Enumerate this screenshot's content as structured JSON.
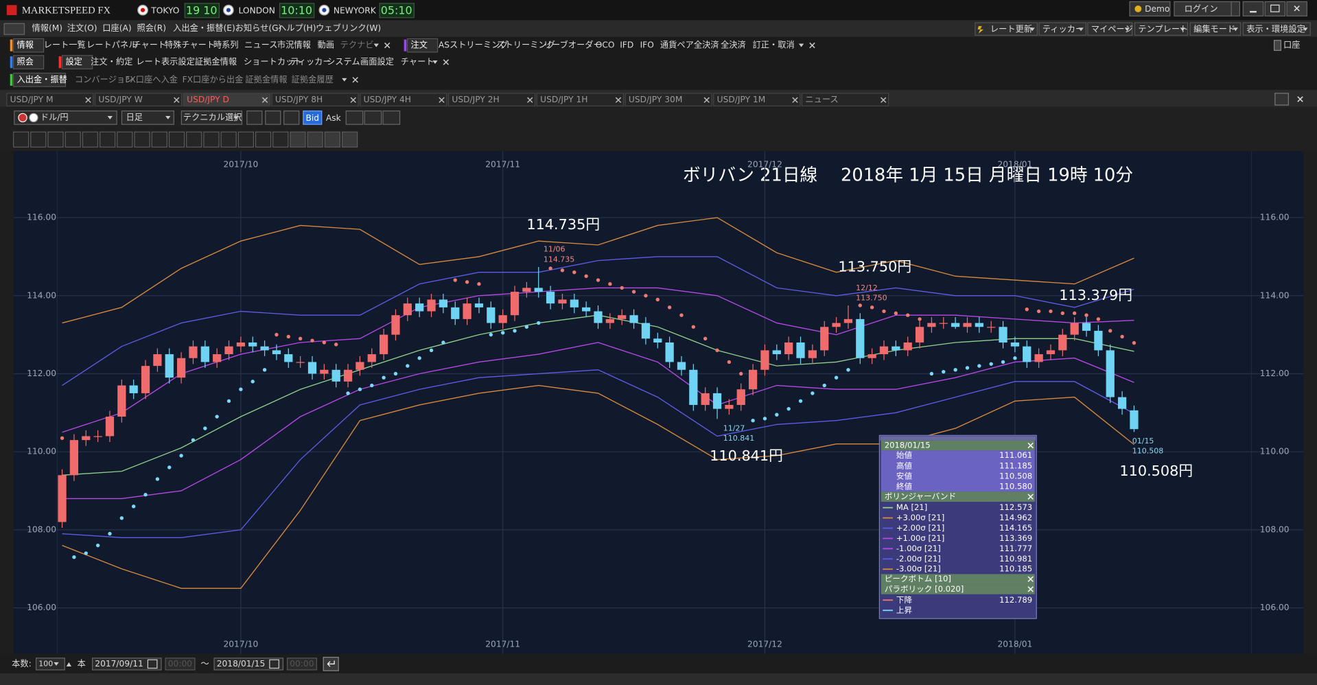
{
  "title_bar": {
    "app": "MARKETSPEED FX",
    "clocks": [
      {
        "city": "TOKYO",
        "time": "19 10"
      },
      {
        "city": "LONDON",
        "time": "10:10"
      },
      {
        "city": "NEWYORK",
        "time": "05:10"
      }
    ],
    "buttons": [
      "Demo",
      "ログイン"
    ]
  },
  "menu": [
    "情報(M)",
    "注文(O)",
    "口座(A)",
    "照会(R)",
    "入出金・振替(E)",
    "お知らせ(G)",
    "ヘルプ(H)",
    "ウェブリンク(W)"
  ],
  "menu_right": [
    "レート更新",
    "ティッカー",
    "マイページ",
    "テンプレート",
    "編集モード",
    "表示・環境設定"
  ],
  "toolbar1": {
    "info": {
      "label": "情報",
      "items": [
        "レート一覧",
        "レートパネル",
        "チャート",
        "特殊チャート",
        "時系列",
        "ニュース",
        "市況情報",
        "動画",
        "テクナビ"
      ]
    },
    "order": {
      "label": "注文",
      "items": [
        "ASストリーミング",
        "ストリーミング",
        "リーブオーダー",
        "OCO",
        "IFD",
        "IFO",
        "通貨ペア全決済",
        "全決済",
        "訂正・取消"
      ]
    },
    "account": "口座"
  },
  "toolbar2": {
    "inquiry": "照会",
    "settings": {
      "label": "設定",
      "items": [
        "注文・約定",
        "レート表示設定",
        "証拠金情報",
        "ショートカット",
        "ティッカー",
        "システム",
        "画面設定",
        "チャート"
      ]
    }
  },
  "toolbar3": {
    "label": "入出金・振替",
    "items": [
      "コンバージョン",
      "FX口座へ入金",
      "FX口座から出金",
      "証拠金情報",
      "証拠金履歴"
    ]
  },
  "tabs": {
    "items": [
      "USD/JPY M",
      "USD/JPY W",
      "USD/JPY D",
      "USD/JPY 8H",
      "USD/JPY 4H",
      "USD/JPY 2H",
      "USD/JPY 1H",
      "USD/JPY 30M",
      "USD/JPY 1M",
      "ニュース"
    ],
    "active": 2
  },
  "chart_toolbar": {
    "pair": "ドル/円",
    "period": "日足",
    "technical": "テクニカル選択",
    "bid": "Bid",
    "ask": "Ask"
  },
  "chart_data": {
    "type": "candlestick",
    "title": "ボリバン 21日線　 2018年 1月 15日 月曜日 19時 10分",
    "categories": [
      null,
      null,
      null,
      null,
      null,
      null,
      null,
      null,
      null,
      null,
      null,
      null,
      null,
      null,
      null,
      null,
      null,
      null,
      null,
      null,
      null,
      null,
      null,
      null,
      null,
      null,
      null,
      null,
      null,
      null,
      null,
      null,
      null,
      null,
      null,
      null,
      null,
      null,
      null,
      null,
      null,
      null,
      null,
      null,
      null,
      null,
      null,
      null,
      null,
      null,
      null,
      null,
      null,
      null,
      null,
      null,
      null,
      null,
      null,
      null,
      null,
      null,
      null,
      null,
      null,
      null,
      null,
      null,
      null,
      null,
      null,
      null,
      null,
      null,
      null,
      null,
      null,
      null,
      null,
      null,
      null,
      null,
      null,
      null,
      null,
      null,
      null,
      null,
      null,
      null,
      null
    ],
    "open": [
      108.2,
      109.4,
      110.3,
      110.4,
      110.4,
      110.9,
      111.7,
      111.5,
      112.2,
      112.5,
      111.9,
      112.4,
      112.7,
      112.3,
      112.5,
      112.7,
      112.8,
      112.7,
      112.6,
      112.5,
      112.3,
      112.3,
      112.0,
      112.1,
      111.8,
      112.1,
      112.3,
      112.5,
      113.0,
      113.5,
      113.8,
      113.6,
      113.9,
      113.7,
      113.4,
      113.8,
      113.7,
      113.3,
      113.5,
      114.1,
      114.2,
      114.1,
      113.8,
      113.9,
      113.7,
      113.6,
      113.3,
      113.4,
      113.5,
      113.3,
      112.9,
      112.8,
      112.3,
      112.1,
      111.2,
      111.5,
      111.1,
      111.2,
      111.6,
      112.1,
      112.6,
      112.5,
      112.8,
      112.4,
      112.6,
      113.2,
      113.3,
      113.4,
      112.4,
      112.5,
      112.7,
      112.6,
      112.8,
      113.2,
      113.3,
      113.3,
      113.2,
      113.3,
      113.2,
      113.2,
      112.8,
      112.7,
      112.3,
      112.5,
      112.6,
      113.0,
      113.3,
      113.1,
      112.6,
      111.4,
      111.061
    ],
    "high": [
      109.55,
      110.45,
      110.55,
      110.55,
      111.05,
      111.85,
      111.85,
      112.35,
      112.65,
      112.65,
      112.55,
      112.85,
      112.85,
      112.65,
      112.85,
      112.95,
      112.95,
      112.85,
      112.75,
      112.65,
      112.45,
      112.45,
      112.25,
      112.25,
      112.25,
      112.45,
      112.65,
      113.15,
      113.65,
      113.95,
      113.95,
      114.05,
      114.05,
      113.85,
      113.95,
      113.95,
      113.85,
      113.65,
      114.25,
      114.35,
      114.735,
      114.25,
      114.05,
      114.05,
      113.85,
      113.75,
      113.55,
      113.65,
      113.65,
      113.45,
      113.05,
      112.95,
      112.45,
      112.25,
      111.65,
      111.65,
      111.35,
      111.75,
      112.25,
      112.75,
      112.75,
      112.95,
      112.95,
      112.75,
      113.35,
      113.45,
      113.75,
      113.55,
      112.65,
      112.85,
      112.85,
      112.95,
      113.35,
      113.45,
      113.45,
      113.45,
      113.45,
      113.45,
      113.35,
      113.35,
      112.95,
      112.85,
      112.65,
      112.75,
      113.15,
      113.45,
      113.45,
      113.25,
      112.75,
      111.55,
      111.185
    ],
    "low": [
      108.05,
      109.25,
      110.15,
      110.25,
      110.25,
      110.75,
      111.35,
      111.35,
      112.05,
      111.75,
      111.75,
      112.25,
      112.15,
      112.15,
      112.35,
      112.55,
      112.55,
      112.45,
      112.35,
      112.15,
      112.15,
      111.85,
      111.85,
      111.65,
      111.65,
      111.95,
      112.15,
      112.35,
      112.85,
      113.35,
      113.45,
      113.45,
      113.55,
      113.25,
      113.25,
      113.55,
      113.15,
      113.15,
      113.35,
      113.95,
      113.95,
      113.65,
      113.65,
      113.55,
      113.45,
      113.15,
      113.15,
      113.25,
      113.15,
      112.75,
      112.65,
      112.15,
      111.95,
      111.05,
      111.05,
      110.841,
      110.95,
      111.05,
      111.45,
      111.95,
      112.35,
      112.35,
      112.25,
      112.25,
      112.45,
      113.05,
      113.15,
      112.25,
      112.25,
      112.35,
      112.45,
      112.45,
      112.65,
      113.05,
      113.15,
      113.15,
      113.05,
      113.05,
      113.05,
      112.65,
      112.55,
      112.15,
      112.15,
      112.35,
      112.45,
      112.85,
      112.95,
      112.45,
      111.25,
      110.95,
      110.508
    ],
    "close": [
      109.4,
      110.3,
      110.4,
      110.4,
      110.9,
      111.7,
      111.5,
      112.2,
      112.5,
      111.9,
      112.4,
      112.7,
      112.3,
      112.5,
      112.7,
      112.8,
      112.7,
      112.6,
      112.5,
      112.3,
      112.3,
      112.0,
      112.1,
      111.8,
      112.1,
      112.3,
      112.5,
      113.0,
      113.5,
      113.8,
      113.6,
      113.9,
      113.7,
      113.4,
      113.8,
      113.7,
      113.3,
      113.5,
      114.1,
      114.2,
      114.1,
      113.8,
      113.9,
      113.7,
      113.6,
      113.3,
      113.4,
      113.5,
      113.3,
      112.9,
      112.8,
      112.3,
      112.1,
      111.2,
      111.5,
      111.1,
      111.2,
      111.6,
      112.1,
      112.6,
      112.5,
      112.8,
      112.4,
      112.6,
      113.2,
      113.3,
      113.4,
      112.4,
      112.5,
      112.7,
      112.6,
      112.8,
      113.2,
      113.3,
      113.3,
      113.2,
      113.3,
      113.2,
      113.2,
      112.8,
      112.7,
      112.3,
      112.5,
      112.6,
      113.0,
      113.3,
      113.1,
      112.6,
      111.4,
      111.1,
      110.58
    ],
    "up_color": "#f06c6c",
    "down_color": "#6fd3f3",
    "bands": {
      "x": [
        0,
        5,
        10,
        15,
        20,
        25,
        30,
        35,
        40,
        45,
        50,
        55,
        60,
        65,
        70,
        75,
        80,
        85,
        90
      ],
      "series": [
        {
          "color": "#8fd08a",
          "values": [
            109.4,
            109.5,
            110.1,
            110.9,
            111.6,
            112.1,
            112.6,
            113.0,
            113.3,
            113.5,
            113.2,
            112.6,
            112.2,
            112.3,
            112.6,
            112.8,
            112.9,
            112.9,
            112.573
          ]
        },
        {
          "color": "#d98a3c",
          "values": [
            113.3,
            113.7,
            114.7,
            115.4,
            115.8,
            115.7,
            114.8,
            115.0,
            115.4,
            115.3,
            115.8,
            116.0,
            115.1,
            114.6,
            114.9,
            114.5,
            114.4,
            114.3,
            114.962
          ]
        },
        {
          "color": "#5c5ce6",
          "values": [
            111.7,
            112.7,
            113.3,
            113.6,
            113.5,
            113.5,
            114.3,
            114.6,
            114.6,
            114.9,
            115.0,
            115.0,
            114.2,
            114.0,
            114.2,
            114.0,
            114.0,
            113.7,
            114.165
          ]
        },
        {
          "color": "#b648e6",
          "values": [
            110.5,
            111.0,
            112.0,
            112.5,
            112.8,
            112.9,
            113.7,
            114.0,
            114.1,
            114.2,
            114.2,
            114.0,
            113.3,
            113.0,
            113.5,
            113.5,
            113.4,
            113.3,
            113.369
          ]
        },
        {
          "color": "#b648e6",
          "values": [
            108.8,
            108.8,
            109.0,
            109.8,
            110.9,
            111.6,
            112.0,
            112.3,
            112.5,
            112.8,
            112.3,
            111.2,
            111.7,
            111.6,
            111.6,
            111.9,
            112.3,
            112.4,
            111.777
          ]
        },
        {
          "color": "#5c5ce6",
          "values": [
            107.9,
            107.8,
            107.8,
            108.0,
            109.8,
            111.2,
            111.6,
            111.9,
            112.0,
            112.1,
            111.4,
            110.4,
            110.7,
            110.8,
            111.0,
            111.4,
            111.8,
            111.8,
            110.981
          ]
        },
        {
          "color": "#d98a3c",
          "values": [
            107.6,
            107.0,
            106.5,
            106.5,
            108.5,
            110.8,
            111.2,
            111.5,
            111.7,
            111.5,
            110.7,
            109.8,
            109.9,
            110.2,
            110.2,
            110.6,
            111.3,
            111.4,
            110.185
          ]
        }
      ]
    },
    "parabolic": {
      "down_color": "#f07a72",
      "up_color": "#7bd8f6",
      "values": [
        110.35,
        107.3,
        107.4,
        107.6,
        107.9,
        108.3,
        108.6,
        108.9,
        109.3,
        109.6,
        109.9,
        110.3,
        110.6,
        110.9,
        111.3,
        111.6,
        111.8,
        112.1,
        113.0,
        112.95,
        112.9,
        112.85,
        112.8,
        112.75,
        111.5,
        111.6,
        111.7,
        111.9,
        112.0,
        112.2,
        112.4,
        112.6,
        112.8,
        114.4,
        114.35,
        114.3,
        113.0,
        113.05,
        113.1,
        113.2,
        113.3,
        114.7,
        114.65,
        114.6,
        114.5,
        114.4,
        114.3,
        114.2,
        114.1,
        114.0,
        113.9,
        113.7,
        113.5,
        113.2,
        112.9,
        112.6,
        112.3,
        112.0,
        110.8,
        110.85,
        110.95,
        111.1,
        111.3,
        111.5,
        111.7,
        111.9,
        112.1,
        113.75,
        113.7,
        113.6,
        113.55,
        113.5,
        113.4,
        112.0,
        112.05,
        112.1,
        112.15,
        112.2,
        112.25,
        112.3,
        112.4,
        113.65,
        113.6,
        113.6,
        113.55,
        113.55,
        113.5,
        113.4,
        113.1,
        112.95,
        112.789
      ]
    },
    "ylim": [
      104.82,
      117.7
    ],
    "yticks": [
      {
        "value": 106,
        "label": "106.00"
      },
      {
        "value": 108,
        "label": "108.00"
      },
      {
        "value": 110,
        "label": "110.00"
      },
      {
        "value": 112,
        "label": "112.00"
      },
      {
        "value": 114,
        "label": "114.00"
      },
      {
        "value": 116,
        "label": "116.00"
      }
    ],
    "xticks": [
      {
        "value": 15,
        "label": "2017/10"
      },
      {
        "value": 37,
        "label": "2017/11"
      },
      {
        "value": 59,
        "label": "2017/12"
      },
      {
        "value": 80,
        "label": "2018/01"
      }
    ],
    "grid": true,
    "annotations": [
      "114.735円",
      "113.750円",
      "113.379円",
      "110.841円",
      "110.508円"
    ],
    "point_labels": [
      {
        "date": "11/06",
        "value": "114.735"
      },
      {
        "date": "12/12",
        "value": "113.750"
      },
      {
        "date": "11/27",
        "value": "110.841"
      },
      {
        "date": "01/15",
        "value": "110.508"
      }
    ]
  },
  "info_panel": {
    "date": "2018/01/15",
    "ohlc": [
      {
        "label": "始値",
        "value": "111.061"
      },
      {
        "label": "高値",
        "value": "111.185"
      },
      {
        "label": "安値",
        "value": "110.508"
      },
      {
        "label": "終値",
        "value": "110.580"
      }
    ],
    "bollinger": {
      "title": "ボリンジャーバンド",
      "rows": [
        {
          "label": "MA [21]",
          "value": "112.573"
        },
        {
          "label": "+3.00σ [21]",
          "value": "114.962"
        },
        {
          "label": "+2.00σ [21]",
          "value": "114.165"
        },
        {
          "label": "+1.00σ [21]",
          "value": "113.369"
        },
        {
          "label": "-1.00σ [21]",
          "value": "111.777"
        },
        {
          "label": "-2.00σ [21]",
          "value": "110.981"
        },
        {
          "label": "-3.00σ [21]",
          "value": "110.185"
        }
      ]
    },
    "peak": "ピークボトム [10]",
    "parabolic": {
      "title": "パラボリック [0.020]",
      "rows": [
        {
          "label": "下降",
          "value": "112.789"
        },
        {
          "label": "上昇"
        }
      ]
    }
  },
  "footer": {
    "count_label": "本数:",
    "count": "100",
    "unit": "本",
    "from": "2017/09/11",
    "from_time": "00:00",
    "tilde": "～",
    "to": "2018/01/15",
    "to_time": "00:00"
  }
}
